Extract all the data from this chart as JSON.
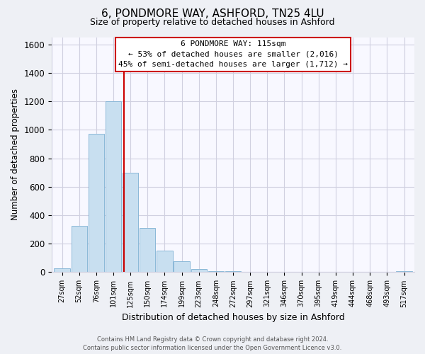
{
  "title": "6, PONDMORE WAY, ASHFORD, TN25 4LU",
  "subtitle": "Size of property relative to detached houses in Ashford",
  "xlabel": "Distribution of detached houses by size in Ashford",
  "ylabel": "Number of detached properties",
  "bar_color": "#c8dff0",
  "bar_edge_color": "#8ab8d8",
  "categories": [
    "27sqm",
    "52sqm",
    "76sqm",
    "101sqm",
    "125sqm",
    "150sqm",
    "174sqm",
    "199sqm",
    "223sqm",
    "248sqm",
    "272sqm",
    "297sqm",
    "321sqm",
    "346sqm",
    "370sqm",
    "395sqm",
    "419sqm",
    "444sqm",
    "468sqm",
    "493sqm",
    "517sqm"
  ],
  "values": [
    25,
    325,
    970,
    1200,
    700,
    310,
    150,
    75,
    20,
    8,
    5,
    3,
    2,
    1,
    1,
    0,
    0,
    0,
    0,
    0,
    5
  ],
  "ylim": [
    0,
    1650
  ],
  "yticks": [
    0,
    200,
    400,
    600,
    800,
    1000,
    1200,
    1400,
    1600
  ],
  "annotation_line1": "6 PONDMORE WAY: 115sqm",
  "annotation_line2": "← 53% of detached houses are smaller (2,016)",
  "annotation_line3": "45% of semi-detached houses are larger (1,712) →",
  "box_edge_color": "#cc0000",
  "box_face_color": "#ffffff",
  "red_line_x": 3.62,
  "footer_line1": "Contains HM Land Registry data © Crown copyright and database right 2024.",
  "footer_line2": "Contains public sector information licensed under the Open Government Licence v3.0.",
  "background_color": "#eef0f5",
  "plot_bg_color": "#f8f8ff",
  "grid_color": "#d0d0e0",
  "title_fontsize": 11,
  "subtitle_fontsize": 9
}
